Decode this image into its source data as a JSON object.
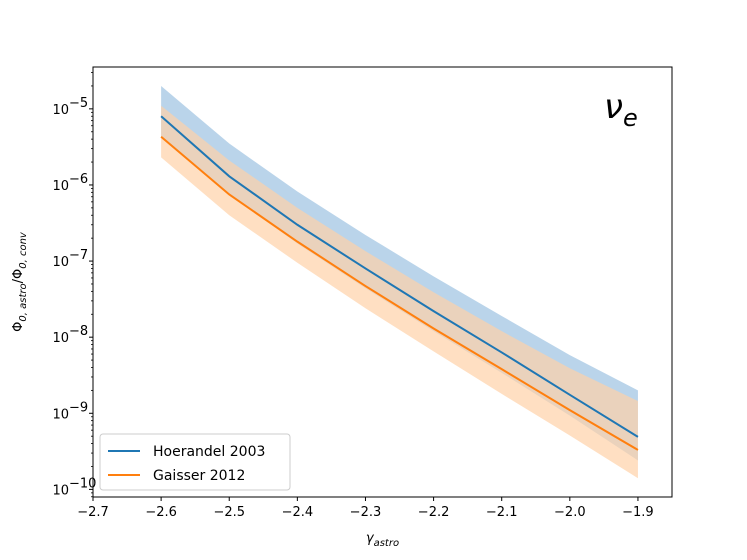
{
  "chart_data": {
    "type": "line",
    "title": "",
    "xlabel_base": "γ",
    "xlabel_sub": "astro",
    "ylabel_num_base": "Φ",
    "ylabel_num_sub": "0, astro",
    "ylabel_den_base": "Φ",
    "ylabel_den_sub": "0, conv",
    "ylabel_sep": "/",
    "yscale": "log",
    "xlim": [
      -2.7,
      -1.85
    ],
    "ylim_log10": [
      -10.1,
      -4.45
    ],
    "x_ticks": [
      -2.7,
      -2.6,
      -2.5,
      -2.4,
      -2.3,
      -2.2,
      -2.1,
      -2.0,
      -1.9
    ],
    "x_tick_labels": [
      "−2.7",
      "−2.6",
      "−2.5",
      "−2.4",
      "−2.3",
      "−2.2",
      "−2.1",
      "−2.0",
      "−1.9"
    ],
    "y_ticks_log10": [
      -10,
      -9,
      -8,
      -7,
      -6,
      -5
    ],
    "y_tick_base": "10",
    "y_tick_exponents": [
      "−10",
      "−9",
      "−8",
      "−7",
      "−6",
      "−5"
    ],
    "annotation_base": "ν",
    "annotation_sub": "e",
    "legend_position": "lower-left",
    "x": [
      -2.6,
      -2.5,
      -2.4,
      -2.3,
      -2.2,
      -2.1,
      -2.0,
      -1.9
    ],
    "series": [
      {
        "name": "Hoerandel 2003",
        "color": "#1f77b4",
        "band_color": "#aecde6",
        "values": [
          8e-06,
          1.3e-06,
          3e-07,
          8e-08,
          2.2e-08,
          6.3e-09,
          1.75e-09,
          4.9e-10
        ],
        "band_upper": [
          2e-05,
          3.5e-06,
          8.2e-07,
          2.2e-07,
          6.3e-08,
          1.9e-08,
          5.8e-09,
          2e-09
        ],
        "band_lower": [
          4.3e-06,
          7.5e-07,
          1.7e-07,
          4.4e-08,
          1.2e-08,
          3.4e-09,
          9.3e-10,
          2.4e-10
        ]
      },
      {
        "name": "Gaisser 2012",
        "color": "#ff7f0e",
        "band_color": "#ffd1a8",
        "values": [
          4.3e-06,
          7.5e-07,
          1.8e-07,
          4.7e-08,
          1.3e-08,
          3.8e-09,
          1.1e-09,
          3.3e-10
        ],
        "band_upper": [
          1.1e-05,
          2.1e-06,
          5e-07,
          1.35e-07,
          3.9e-08,
          1.2e-08,
          3.9e-09,
          1.45e-09
        ],
        "band_lower": [
          2.3e-06,
          4e-07,
          9.5e-08,
          2.4e-08,
          6.5e-09,
          1.8e-09,
          5.1e-10,
          1.4e-10
        ]
      }
    ]
  }
}
